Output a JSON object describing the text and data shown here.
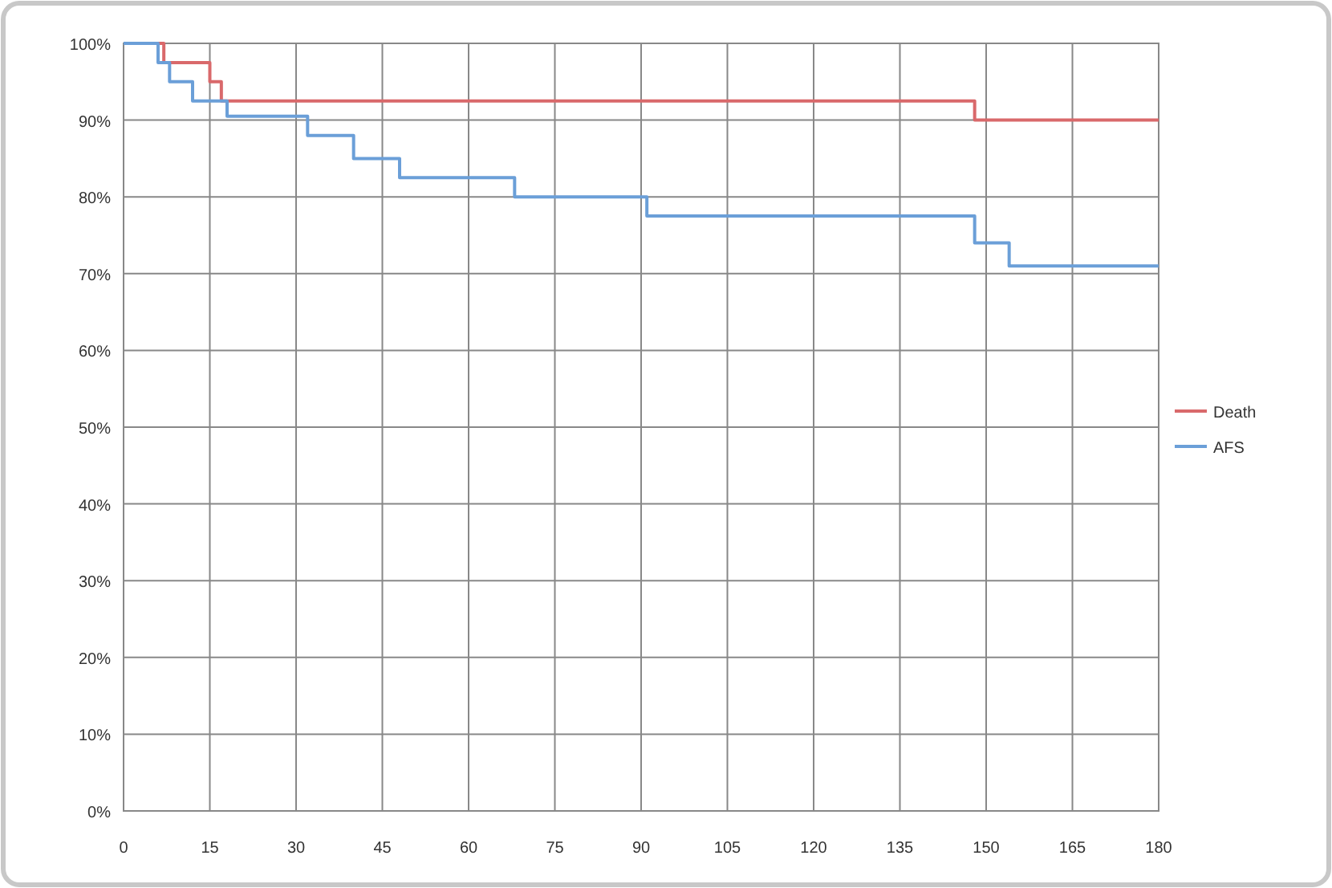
{
  "chart_data": {
    "type": "step",
    "xlim": [
      0,
      180
    ],
    "xticks": [
      0,
      15,
      30,
      45,
      60,
      75,
      90,
      105,
      120,
      135,
      150,
      165,
      180
    ],
    "ylim": [
      0,
      100
    ],
    "yticks": [
      {
        "value": 0,
        "label": "0%"
      },
      {
        "value": 10,
        "label": "10%"
      },
      {
        "value": 20,
        "label": "20%"
      },
      {
        "value": 30,
        "label": "30%"
      },
      {
        "value": 40,
        "label": "40%"
      },
      {
        "value": 50,
        "label": "50%"
      },
      {
        "value": 60,
        "label": "60%"
      },
      {
        "value": 70,
        "label": "70%"
      },
      {
        "value": 80,
        "label": "80%"
      },
      {
        "value": 90,
        "label": "90%"
      },
      {
        "value": 100,
        "label": "100%"
      }
    ],
    "grid": true,
    "legend": "right",
    "marker": "none",
    "line_style": "solid",
    "series": [
      {
        "name": "Death",
        "color": "#d9696b",
        "x": [
          0,
          7,
          15,
          17,
          148,
          180
        ],
        "values": [
          100,
          97.5,
          95,
          92.5,
          90,
          90
        ]
      },
      {
        "name": "AFS",
        "color": "#6b9fd8",
        "x": [
          0,
          6,
          8,
          12,
          18,
          32,
          40,
          48,
          68,
          91,
          148,
          154,
          180
        ],
        "values": [
          100,
          97.5,
          95,
          92.5,
          90.5,
          88,
          85,
          82.5,
          80,
          77.5,
          74,
          71,
          71
        ]
      }
    ]
  }
}
